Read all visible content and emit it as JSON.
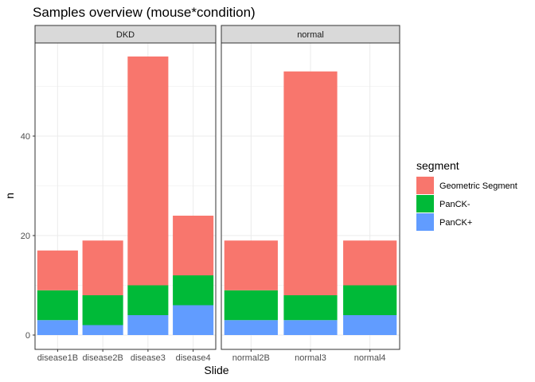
{
  "chart_data": {
    "type": "bar",
    "stacked": true,
    "title": "Samples overview (mouse*condition)",
    "xlabel": "Slide",
    "ylabel": "n",
    "ylim": [
      0,
      58
    ],
    "yticks": [
      0,
      20,
      40
    ],
    "grid": true,
    "legend": {
      "title": "segment",
      "position": "right",
      "entries": [
        "Geometric Segment",
        "PanCK-",
        "PanCK+"
      ]
    },
    "colors": {
      "Geometric Segment": "#F8766D",
      "PanCK-": "#00BA38",
      "PanCK+": "#619CFF"
    },
    "stack_order_bottom_to_top": [
      "PanCK+",
      "PanCK-",
      "Geometric Segment"
    ],
    "facets": [
      {
        "label": "DKD",
        "categories": [
          "disease1B",
          "disease2B",
          "disease3",
          "disease4"
        ],
        "series": [
          {
            "name": "Geometric Segment",
            "values": [
              8,
              11,
              46,
              12
            ]
          },
          {
            "name": "PanCK-",
            "values": [
              6,
              6,
              6,
              6
            ]
          },
          {
            "name": "PanCK+",
            "values": [
              3,
              2,
              4,
              6
            ]
          }
        ]
      },
      {
        "label": "normal",
        "categories": [
          "normal2B",
          "normal3",
          "normal4"
        ],
        "series": [
          {
            "name": "Geometric Segment",
            "values": [
              10,
              45,
              9
            ]
          },
          {
            "name": "PanCK-",
            "values": [
              6,
              5,
              6
            ]
          },
          {
            "name": "PanCK+",
            "values": [
              3,
              3,
              4
            ]
          }
        ]
      }
    ]
  }
}
